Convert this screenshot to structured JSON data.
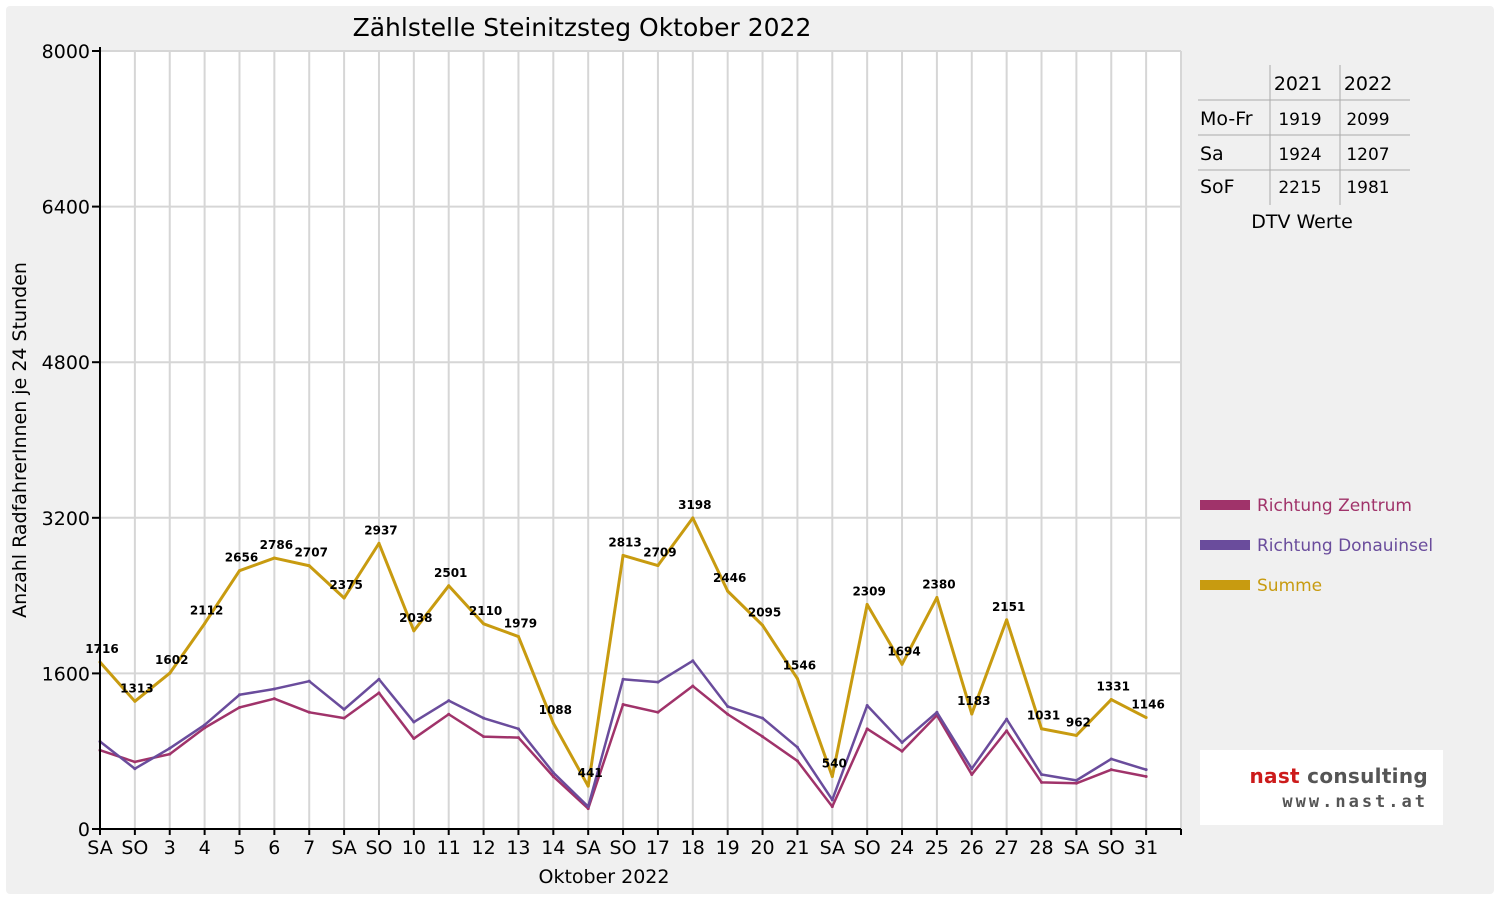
{
  "chart_data": {
    "type": "line",
    "title": "Zählstelle Steinitzsteg Oktober 2022",
    "xlabel": "Oktober 2022",
    "ylabel": "Anzahl RadfahrerInnen je 24 Stunden",
    "ylim": [
      0,
      8000
    ],
    "yticks": [
      0,
      1600,
      3200,
      4800,
      6400,
      8000
    ],
    "grid": true,
    "legend_position": "right",
    "categories": [
      "SA",
      "SO",
      "3",
      "4",
      "5",
      "6",
      "7",
      "SA",
      "SO",
      "10",
      "11",
      "12",
      "13",
      "14",
      "SA",
      "SO",
      "17",
      "18",
      "19",
      "20",
      "21",
      "SA",
      "SO",
      "24",
      "25",
      "26",
      "27",
      "28",
      "SA",
      "SO",
      "31"
    ],
    "red_categories": [
      1,
      8,
      15,
      22,
      25,
      29
    ],
    "series": [
      {
        "name": "Richtung Zentrum",
        "color": "#a0336a",
        "values": [
          810,
          690,
          770,
          1040,
          1250,
          1340,
          1200,
          1140,
          1400,
          930,
          1180,
          950,
          940,
          540,
          210,
          1280,
          1200,
          1470,
          1180,
          950,
          700,
          230,
          1030,
          800,
          1170,
          560,
          1010,
          480,
          470,
          610,
          540
        ]
      },
      {
        "name": "Richtung Donauinsel",
        "color": "#6a4c9c",
        "values": [
          900,
          620,
          830,
          1070,
          1380,
          1440,
          1520,
          1230,
          1540,
          1100,
          1320,
          1140,
          1030,
          580,
          230,
          1540,
          1510,
          1730,
          1260,
          1140,
          840,
          300,
          1270,
          890,
          1200,
          620,
          1130,
          560,
          500,
          720,
          610
        ]
      },
      {
        "name": "Summe",
        "color": "#c89b10",
        "values": [
          1716,
          1313,
          1602,
          2112,
          2656,
          2786,
          2707,
          2375,
          2937,
          2038,
          2501,
          2110,
          1979,
          1088,
          441,
          2813,
          2709,
          3198,
          2446,
          2095,
          1546,
          540,
          2309,
          1694,
          2380,
          1183,
          2151,
          1031,
          962,
          1331,
          1146
        ]
      }
    ],
    "data_labels": [
      "1716",
      "1313",
      "1602",
      "2112",
      "2656",
      "2786",
      "2707",
      "2375",
      "2937",
      "2038",
      "2501",
      "2110",
      "1979",
      "1088",
      "441",
      "2813",
      "2709",
      "3198",
      "2446",
      "2095",
      "1546",
      "540",
      "2309",
      "1694",
      "2380",
      "1183",
      "2151",
      "1031",
      "962",
      "1331",
      "1146"
    ]
  },
  "dtv_table": {
    "headers": [
      "",
      "2021",
      "2022"
    ],
    "rows": [
      {
        "label": "Mo-Fr",
        "v2021": "1919",
        "v2022": "2099"
      },
      {
        "label": "Sa",
        "v2021": "1924",
        "v2022": "1207"
      },
      {
        "label": "SoF",
        "v2021": "2215",
        "v2022": "1981"
      }
    ],
    "caption": "DTV Werte"
  },
  "logo": {
    "first_word": "nast",
    "second_word": " consulting",
    "url": "www.nast.at"
  },
  "colors": {
    "background": "#f0f0f0",
    "plot_background": "#ffffff",
    "grid": "#d6d6d6",
    "weekend_red": "#e8000b"
  }
}
